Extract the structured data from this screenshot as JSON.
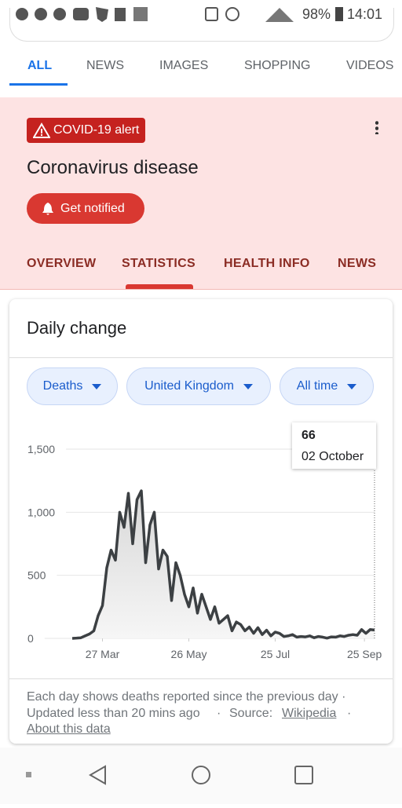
{
  "status_bar": {
    "battery": "98%",
    "time": "14:01"
  },
  "tabs": [
    "ALL",
    "NEWS",
    "IMAGES",
    "SHOPPING",
    "VIDEOS"
  ],
  "alert": {
    "badge": "COVID-19 alert",
    "title": "Coronavirus disease",
    "button": "Get notified",
    "tabs": [
      "OVERVIEW",
      "STATISTICS",
      "HEALTH INFO",
      "NEWS"
    ]
  },
  "card": {
    "title": "Daily change",
    "chips": [
      "Deaths",
      "United Kingdom",
      "All time"
    ],
    "tooltip_date": "02 October",
    "footer": {
      "line1": "Each day shows deaths reported since the previous day ·",
      "updated": "Updated less than 20 mins ago",
      "source": "Source:",
      "source_link": "Wikipedia",
      "about": "About this data"
    }
  },
  "chart_data": {
    "type": "line",
    "color": "#3c4043",
    "x": [
      66,
      69,
      72,
      75,
      78,
      81,
      84,
      87,
      90,
      93,
      96,
      99,
      102,
      105,
      108,
      111,
      114,
      117,
      120,
      123,
      126,
      129,
      132,
      135,
      138,
      141,
      144,
      147,
      150,
      153,
      156,
      159,
      162,
      165,
      168,
      171,
      174,
      177,
      180,
      183,
      186,
      189,
      192,
      195,
      198,
      201,
      204,
      207,
      210,
      213,
      216,
      219,
      222,
      225,
      228,
      231,
      234,
      237,
      240,
      243,
      246,
      249,
      252,
      255,
      258,
      261,
      264,
      267,
      270,
      273,
      276
    ],
    "values": [
      0,
      2,
      5,
      20,
      35,
      60,
      180,
      260,
      560,
      700,
      620,
      1000,
      880,
      1150,
      750,
      1100,
      1170,
      600,
      900,
      1000,
      550,
      700,
      650,
      300,
      600,
      500,
      350,
      250,
      400,
      200,
      350,
      250,
      150,
      250,
      120,
      150,
      180,
      60,
      130,
      110,
      60,
      90,
      40,
      85,
      30,
      65,
      20,
      50,
      40,
      15,
      20,
      30,
      10,
      15,
      12,
      20,
      5,
      15,
      10,
      2,
      12,
      10,
      20,
      15,
      25,
      30,
      25,
      70,
      40,
      70,
      66
    ],
    "xlim": [
      66,
      276
    ],
    "ylim": [
      0,
      1500
    ],
    "yticks": [
      {
        "value": 1500,
        "label": "1,500"
      },
      {
        "value": 1000,
        "label": "1,000"
      },
      500,
      0
    ],
    "xticks": [
      {
        "value": 87,
        "label": "27 Mar"
      },
      {
        "value": 147,
        "label": "26 May"
      },
      {
        "value": 207,
        "label": "25 Jul"
      },
      {
        "value": 269,
        "label": "25 Sep"
      }
    ],
    "grid": true
  }
}
